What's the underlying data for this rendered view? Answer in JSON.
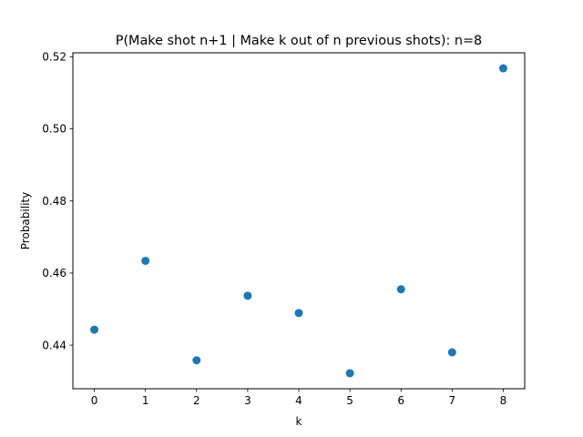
{
  "chart_data": {
    "type": "scatter",
    "title": "P(Make shot n+1 | Make k out of n previous shots): n=8",
    "xlabel": "k",
    "ylabel": "Probability",
    "x": [
      0,
      1,
      2,
      3,
      4,
      5,
      6,
      7,
      8
    ],
    "y": [
      0.4443,
      0.4634,
      0.4358,
      0.4537,
      0.4489,
      0.4322,
      0.4555,
      0.438,
      0.5168
    ],
    "xlim": [
      -0.42,
      8.42
    ],
    "ylim": [
      0.4279,
      0.5211
    ],
    "xticks": [
      "0",
      "1",
      "2",
      "3",
      "4",
      "5",
      "6",
      "7",
      "8"
    ],
    "yticks": [
      "0.44",
      "0.46",
      "0.48",
      "0.50",
      "0.52"
    ],
    "grid": false,
    "marker_color": "#1f77b4"
  }
}
